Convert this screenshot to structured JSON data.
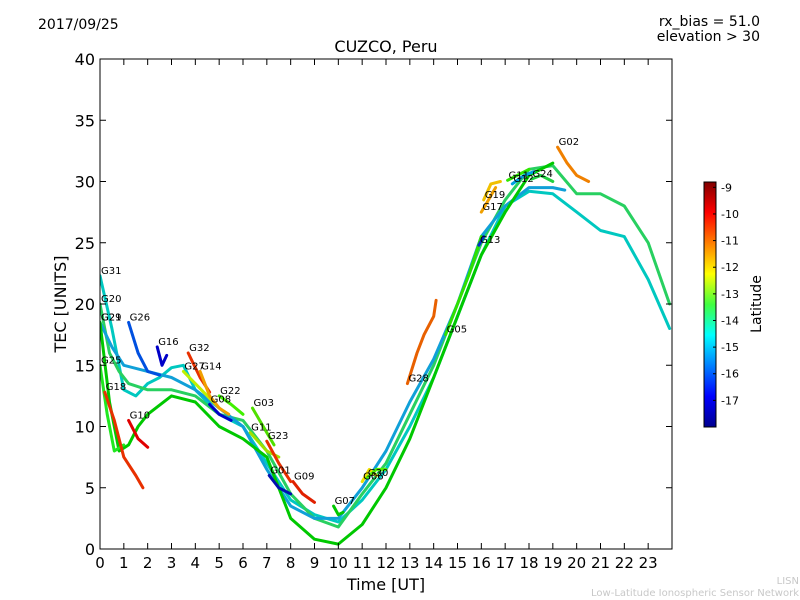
{
  "header": {
    "date": "2017/09/25",
    "rx_bias": "rx_bias = 51.0",
    "elevation": "elevation > 30",
    "title": "CUZCO, Peru"
  },
  "footer": {
    "line1": "LISN",
    "line2": "Low-Latitude Ionospheric Sensor Network"
  },
  "chart_data": {
    "type": "line",
    "title": "CUZCO, Peru",
    "xlabel": "Time [UT]",
    "ylabel": "TEC [UNITS]",
    "xlim": [
      0,
      24
    ],
    "ylim": [
      0,
      40
    ],
    "xticks": [
      "0",
      "1",
      "2",
      "3",
      "4",
      "5",
      "6",
      "7",
      "8",
      "9",
      "10",
      "11",
      "12",
      "13",
      "14",
      "15",
      "16",
      "17",
      "18",
      "19",
      "20",
      "21",
      "22",
      "23"
    ],
    "yticks": [
      "0",
      "5",
      "10",
      "15",
      "20",
      "25",
      "30",
      "35",
      "40"
    ],
    "colorbar": {
      "label": "Latitude",
      "range": [
        -18,
        -8.8
      ],
      "ticks": [
        "-9",
        "-10",
        "-11",
        "-12",
        "-13",
        "-14",
        "-15",
        "-16",
        "-17"
      ],
      "tick_values": [
        -9,
        -10,
        -11,
        -12,
        -13,
        -14,
        -15,
        -16,
        -17
      ],
      "colormap": "jet"
    },
    "series": [
      {
        "name": "G31",
        "color": "#00c8c0",
        "points": [
          [
            0,
            22.3
          ],
          [
            0.5,
            18
          ],
          [
            1,
            13
          ],
          [
            1.5,
            12.5
          ],
          [
            2,
            13.5
          ],
          [
            2.5,
            14
          ],
          [
            3,
            14.8
          ],
          [
            3.5,
            15
          ],
          [
            4,
            13
          ],
          [
            5,
            11
          ],
          [
            6,
            10
          ],
          [
            7,
            7
          ],
          [
            8,
            4
          ],
          [
            9,
            2.8
          ],
          [
            10,
            2.2
          ],
          [
            11,
            4
          ],
          [
            12,
            6.5
          ],
          [
            13,
            10
          ],
          [
            14,
            14
          ],
          [
            15,
            19
          ],
          [
            16,
            24
          ],
          [
            17,
            28
          ],
          [
            18,
            29.2
          ],
          [
            19,
            29
          ],
          [
            20,
            27.5
          ],
          [
            21,
            26
          ],
          [
            22,
            25.5
          ],
          [
            23,
            22
          ],
          [
            23.9,
            18
          ]
        ]
      },
      {
        "name": "G20",
        "color": "#28d060",
        "points": [
          [
            0,
            20
          ],
          [
            0.4,
            16
          ],
          [
            0.8,
            14.5
          ],
          [
            1.2,
            13.5
          ],
          [
            2,
            13
          ],
          [
            3,
            13
          ],
          [
            4,
            12.5
          ],
          [
            5,
            11
          ],
          [
            6,
            10.5
          ],
          [
            7,
            8
          ],
          [
            8,
            4.5
          ],
          [
            9,
            2.5
          ],
          [
            10,
            1.8
          ],
          [
            11,
            4.5
          ],
          [
            12,
            7
          ],
          [
            13,
            11
          ],
          [
            14,
            15
          ],
          [
            15,
            20
          ],
          [
            16,
            25
          ],
          [
            17,
            28.5
          ],
          [
            18,
            31
          ],
          [
            19,
            31.3
          ],
          [
            20,
            29
          ],
          [
            21,
            29
          ],
          [
            22,
            28
          ],
          [
            23,
            25
          ],
          [
            23.9,
            20
          ]
        ]
      },
      {
        "name": "G21",
        "color": "#10a0d8",
        "points": [
          [
            0,
            18.5
          ],
          [
            0.5,
            16.5
          ],
          [
            1,
            15
          ],
          [
            2,
            14.5
          ],
          [
            3,
            14
          ],
          [
            4,
            13
          ],
          [
            5,
            11.5
          ],
          [
            6,
            10
          ],
          [
            7,
            6.5
          ],
          [
            8,
            3.5
          ],
          [
            9,
            2.5
          ],
          [
            10,
            2.5
          ],
          [
            11,
            5
          ],
          [
            12,
            8
          ],
          [
            13,
            12
          ],
          [
            14,
            15.5
          ],
          [
            15,
            20
          ],
          [
            16,
            25.5
          ],
          [
            17,
            28
          ],
          [
            18,
            29.5
          ],
          [
            19,
            29.5
          ],
          [
            19.5,
            29.3
          ]
        ]
      },
      {
        "name": "G29",
        "color": "#00c800",
        "points": [
          [
            0,
            18.5
          ],
          [
            0.4,
            12
          ],
          [
            0.8,
            8
          ],
          [
            1.2,
            8.5
          ],
          [
            1.6,
            10
          ],
          [
            2,
            11
          ],
          [
            3,
            12.5
          ],
          [
            4,
            12
          ],
          [
            5,
            10
          ],
          [
            6,
            9
          ],
          [
            7,
            7.5
          ],
          [
            8,
            2.5
          ],
          [
            9,
            0.8
          ],
          [
            10,
            0.4
          ],
          [
            11,
            2
          ],
          [
            12,
            5
          ],
          [
            13,
            9
          ],
          [
            14,
            14
          ],
          [
            15,
            19
          ],
          [
            16,
            24
          ],
          [
            17,
            27.5
          ],
          [
            18,
            30.5
          ],
          [
            19,
            31.5
          ]
        ]
      },
      {
        "name": "G25",
        "color": "#20e820",
        "points": [
          [
            0,
            15
          ],
          [
            0.3,
            11
          ],
          [
            0.6,
            8
          ],
          [
            1,
            8.5
          ]
        ]
      },
      {
        "name": "G18",
        "color": "#e83000",
        "points": [
          [
            0.2,
            12.8
          ],
          [
            0.6,
            10.5
          ],
          [
            1,
            7.5
          ],
          [
            1.5,
            6
          ],
          [
            1.8,
            5
          ]
        ]
      },
      {
        "name": "G10",
        "color": "#e00000",
        "points": [
          [
            1.2,
            10.5
          ],
          [
            1.6,
            9
          ],
          [
            2,
            8.3
          ]
        ]
      },
      {
        "name": "G26",
        "color": "#0050e0",
        "points": [
          [
            1.2,
            18.5
          ],
          [
            1.6,
            16
          ],
          [
            2,
            14.5
          ],
          [
            2.5,
            14.2
          ]
        ]
      },
      {
        "name": "G16",
        "color": "#0000c8",
        "points": [
          [
            2.4,
            16.5
          ],
          [
            2.6,
            15
          ],
          [
            2.8,
            15.8
          ]
        ]
      },
      {
        "name": "G32",
        "color": "#e83000",
        "points": [
          [
            3.7,
            16
          ],
          [
            4.2,
            14
          ],
          [
            4.6,
            12.8
          ]
        ]
      },
      {
        "name": "G27",
        "color": "#c0f000",
        "points": [
          [
            3.5,
            14.5
          ],
          [
            4,
            13.5
          ],
          [
            4.5,
            12.5
          ],
          [
            5,
            11.5
          ]
        ]
      },
      {
        "name": "G14",
        "color": "#f0a000",
        "points": [
          [
            4.2,
            14.5
          ],
          [
            4.6,
            12.5
          ],
          [
            5,
            11.5
          ],
          [
            5.4,
            11
          ]
        ]
      },
      {
        "name": "G08",
        "color": "#0000c8",
        "points": [
          [
            4.6,
            11.8
          ],
          [
            5,
            11
          ],
          [
            5.5,
            10.5
          ]
        ]
      },
      {
        "name": "G22",
        "color": "#40f000",
        "points": [
          [
            5,
            12.5
          ],
          [
            5.5,
            11.8
          ],
          [
            6,
            11
          ]
        ]
      },
      {
        "name": "G03",
        "color": "#50e000",
        "points": [
          [
            6.4,
            11.5
          ],
          [
            7,
            9.5
          ],
          [
            7.3,
            8.5
          ]
        ]
      },
      {
        "name": "G11",
        "color": "#a0e000",
        "points": [
          [
            6.3,
            9.5
          ],
          [
            7,
            8
          ],
          [
            7.5,
            7.5
          ]
        ]
      },
      {
        "name": "G23",
        "color": "#e83000",
        "points": [
          [
            7,
            8.8
          ],
          [
            7.5,
            7
          ],
          [
            8,
            5.5
          ]
        ]
      },
      {
        "name": "G01",
        "color": "#0010b0",
        "points": [
          [
            7.1,
            6
          ],
          [
            7.5,
            5
          ],
          [
            8,
            4.5
          ]
        ]
      },
      {
        "name": "G09",
        "color": "#e02000",
        "points": [
          [
            8.1,
            5.5
          ],
          [
            8.5,
            4.5
          ],
          [
            9,
            3.8
          ]
        ]
      },
      {
        "name": "G07",
        "color": "#00c800",
        "points": [
          [
            9.8,
            3.5
          ],
          [
            10,
            2.8
          ],
          [
            10.2,
            3
          ]
        ]
      },
      {
        "name": "G06",
        "color": "#f0e000",
        "points": [
          [
            11,
            5.5
          ],
          [
            11.3,
            6.5
          ],
          [
            11.6,
            6
          ]
        ]
      },
      {
        "name": "G30",
        "color": "#50f000",
        "points": [
          [
            11.2,
            5.8
          ],
          [
            11.6,
            6.5
          ],
          [
            12,
            6.5
          ]
        ]
      },
      {
        "name": "G28",
        "color": "#e86000",
        "points": [
          [
            12.9,
            13.5
          ],
          [
            13.3,
            16
          ],
          [
            13.6,
            17.5
          ],
          [
            14,
            19
          ],
          [
            14.1,
            20.3
          ]
        ]
      },
      {
        "name": "G05",
        "color": "#30e000",
        "points": [
          [
            14.5,
            17.5
          ],
          [
            15,
            20
          ],
          [
            15.5,
            22.5
          ],
          [
            16,
            25.5
          ]
        ]
      },
      {
        "name": "G13",
        "color": "#0030c8",
        "points": [
          [
            15.9,
            24.8
          ],
          [
            16.1,
            25.5
          ]
        ]
      },
      {
        "name": "G17",
        "color": "#f0a000",
        "points": [
          [
            16,
            27.5
          ],
          [
            16.3,
            28.5
          ],
          [
            16.6,
            29.5
          ]
        ]
      },
      {
        "name": "G19",
        "color": "#f0c000",
        "points": [
          [
            16.1,
            28.5
          ],
          [
            16.4,
            29.8
          ],
          [
            16.8,
            30
          ]
        ]
      },
      {
        "name": "G11",
        "color": "#30e800",
        "points": [
          [
            17.1,
            30.1
          ],
          [
            17.5,
            30.5
          ],
          [
            18,
            31
          ]
        ]
      },
      {
        "name": "G12",
        "color": "#00a0e0",
        "points": [
          [
            17.3,
            29.8
          ],
          [
            17.8,
            30.5
          ],
          [
            18.2,
            30.8
          ]
        ]
      },
      {
        "name": "G24",
        "color": "#20d040",
        "points": [
          [
            18.1,
            30.2
          ],
          [
            18.5,
            30.5
          ],
          [
            19,
            30
          ]
        ]
      },
      {
        "name": "G02",
        "color": "#f08000",
        "points": [
          [
            19.2,
            32.8
          ],
          [
            19.6,
            31.5
          ],
          [
            20,
            30.5
          ],
          [
            20.5,
            30
          ]
        ]
      }
    ]
  }
}
